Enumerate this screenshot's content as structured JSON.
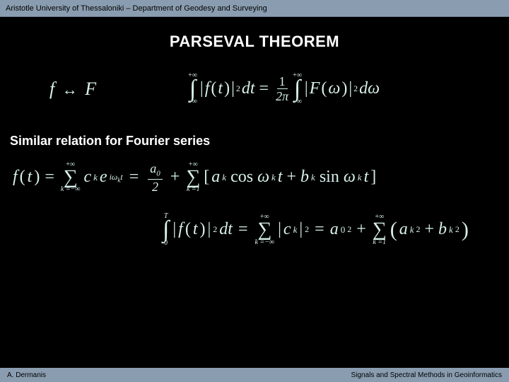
{
  "colors": {
    "background": "#000000",
    "bar": "#8a9db0",
    "text_white": "#ffffff",
    "math": "#d7f0ea"
  },
  "header": {
    "institution": "Aristotle University of Thessaloniki – Department of Geodesy and Surveying"
  },
  "title": "PARSEVAL THEOREM",
  "pair": {
    "f": "f",
    "arrow": "↔",
    "F": "F"
  },
  "parseval": {
    "int_lower": "−∞",
    "int_upper": "+∞",
    "lhs_open": "|",
    "lhs_f": "f",
    "lhs_arg_open": "(",
    "lhs_t": "t",
    "lhs_arg_close": ")",
    "lhs_close": "|",
    "sq": "2",
    "dt": "dt",
    "eq": "=",
    "frac_num": "1",
    "frac_den": "2π",
    "rhs_open": "|",
    "rhs_F": "F",
    "rhs_arg_open": "(",
    "rhs_w": "ω",
    "rhs_arg_close": ")",
    "rhs_close": "|",
    "dw": "dω"
  },
  "section": "Similar relation for Fourier series",
  "fourier": {
    "f": "f",
    "arg_open": "(",
    "t": "t",
    "arg_close": ")",
    "eq": "=",
    "sum_lower": "k =−∞",
    "sum_upper": "+∞",
    "c": "c",
    "k": "k",
    "exp_e": "e",
    "exp_i": "i",
    "exp_w": "ω",
    "exp_t": "t",
    "eq2": "=",
    "a0_num": "a",
    "a0_sub": "0",
    "a0_den": "2",
    "plus": "+",
    "sum2_lower": "k =1",
    "sum2_upper": "+∞",
    "br_open": "[",
    "a": "a",
    "cos": "cos",
    "w": "ω",
    "b": "b",
    "sin": "sin",
    "br_close": "]"
  },
  "parseval2": {
    "int_lower": "0",
    "int_upper": "T",
    "lhs_open": "|",
    "f": "f",
    "arg_open": "(",
    "t": "t",
    "arg_close": ")",
    "lhs_close": "|",
    "sq": "2",
    "dt": "dt",
    "eq": "=",
    "sum_lower": "k =−∞",
    "sum_upper": "+∞",
    "c": "c",
    "k": "k",
    "eq2": "=",
    "a": "a",
    "zero": "0",
    "plus": "+",
    "sum2_lower": "k =1",
    "sum2_upper": "+∞",
    "paren_open": "(",
    "b": "b",
    "paren_close": ")"
  },
  "footer": {
    "author": "A. Dermanis",
    "course": "Signals and Spectral Methods in Geoinformatics"
  }
}
